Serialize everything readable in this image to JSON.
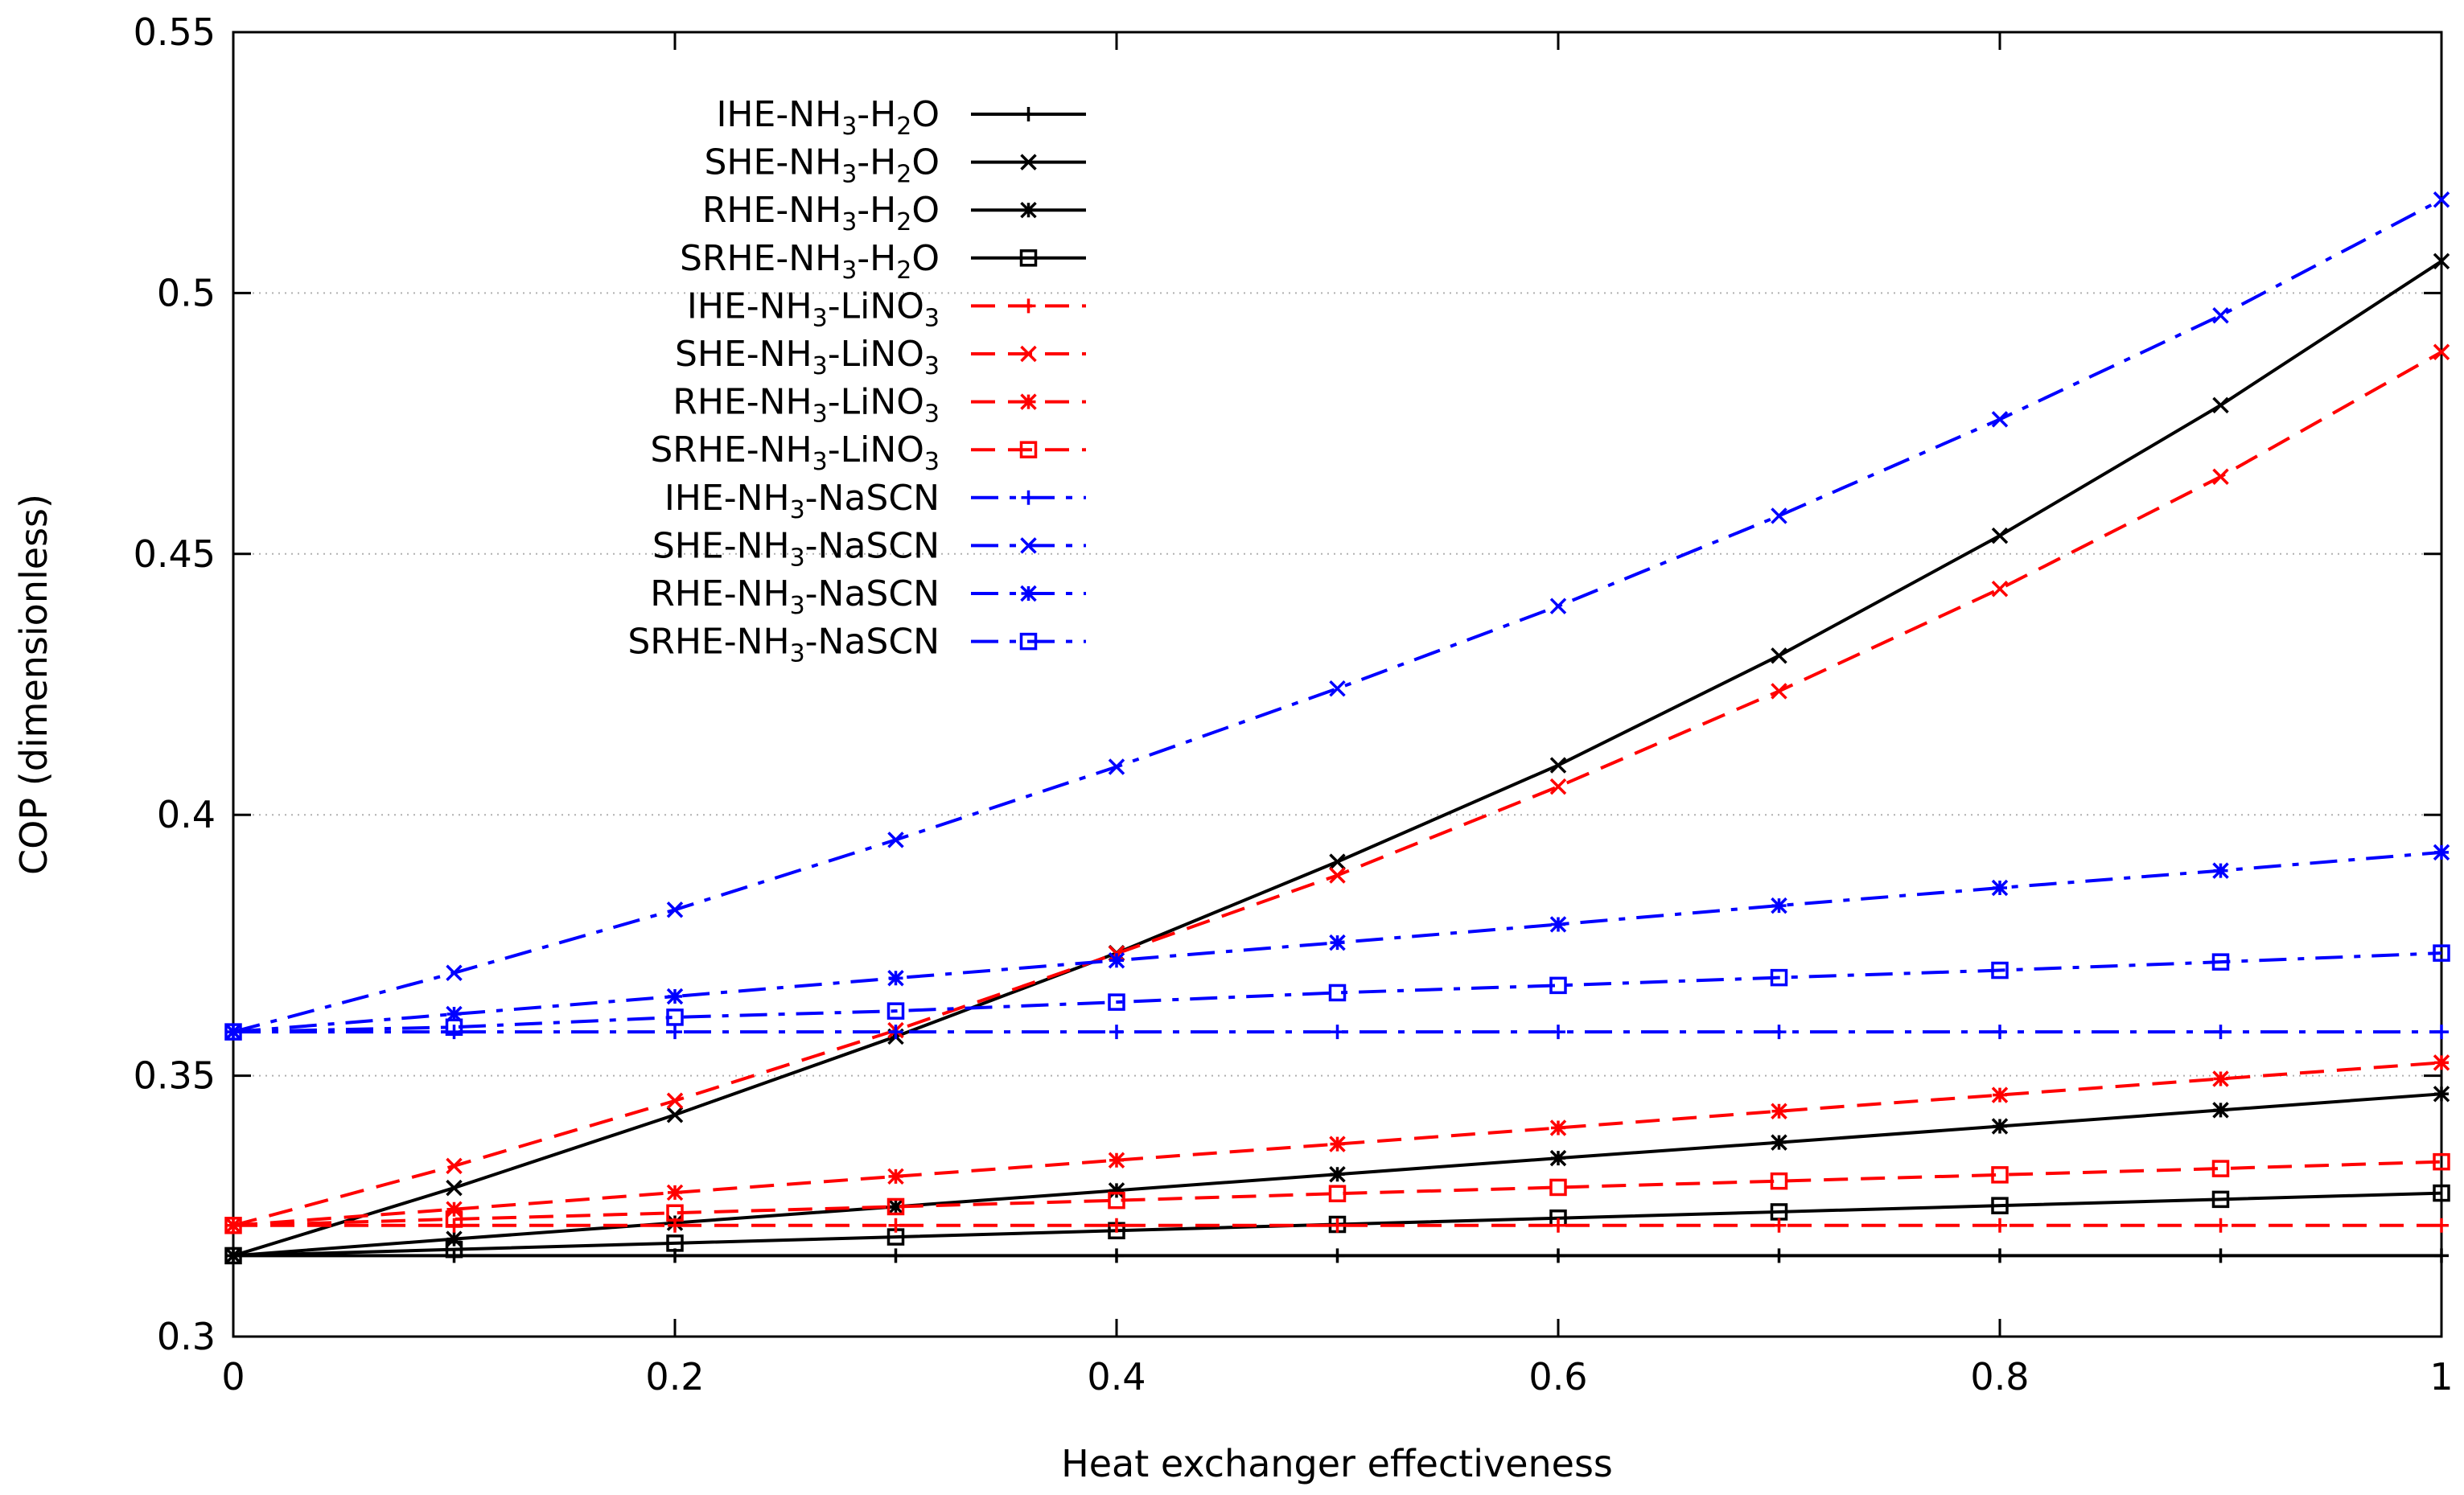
{
  "chart_data": {
    "type": "line",
    "title": "",
    "xlabel": "Heat exchanger effectiveness",
    "ylabel": "COP (dimensionless)",
    "xlim": [
      0,
      1
    ],
    "ylim": [
      0.3,
      0.55
    ],
    "xticks": [
      0,
      0.2,
      0.4,
      0.6,
      0.8,
      1
    ],
    "xtick_labels": [
      "0",
      "0.2",
      "0.4",
      "0.6",
      "0.8",
      "1"
    ],
    "yticks": [
      0.3,
      0.35,
      0.4,
      0.45,
      0.5,
      0.55
    ],
    "ytick_labels": [
      "0.3",
      "0.35",
      "0.4",
      "0.45",
      "0.5",
      "0.55"
    ],
    "grid": "horizontal dotted",
    "legend_position": "top-left",
    "x": [
      0,
      0.1,
      0.2,
      0.3,
      0.4,
      0.5,
      0.6,
      0.7,
      0.8,
      0.9,
      1.0
    ],
    "colors": {
      "h2o": "#000000",
      "lino3": "#ff0000",
      "nascn": "#0000ff"
    },
    "series": [
      {
        "name": "IHE-NH3-H2O",
        "label": [
          "IHE-NH",
          "3",
          "-H",
          "2",
          "O"
        ],
        "color": "#000000",
        "dash": "solid",
        "marker": "plus",
        "values": [
          0.3155,
          0.3155,
          0.3155,
          0.3155,
          0.3155,
          0.3155,
          0.3155,
          0.3155,
          0.3155,
          0.3155,
          0.3155
        ]
      },
      {
        "name": "SHE-NH3-H2O",
        "label": [
          "SHE-NH",
          "3",
          "-H",
          "2",
          "O"
        ],
        "color": "#000000",
        "dash": "solid",
        "marker": "cross",
        "values": [
          0.3155,
          0.3285,
          0.3425,
          0.3575,
          0.3735,
          0.391,
          0.4095,
          0.4305,
          0.4535,
          0.4785,
          0.5061
        ]
      },
      {
        "name": "RHE-NH3-H2O",
        "label": [
          "RHE-NH",
          "3",
          "-H",
          "2",
          "O"
        ],
        "color": "#000000",
        "dash": "solid",
        "marker": "star",
        "values": [
          0.3155,
          0.3187,
          0.3218,
          0.3249,
          0.328,
          0.3311,
          0.3342,
          0.3372,
          0.3403,
          0.3434,
          0.3465
        ]
      },
      {
        "name": "SRHE-NH3-H2O",
        "label": [
          "SRHE-NH",
          "3",
          "-H",
          "2",
          "O"
        ],
        "color": "#000000",
        "dash": "solid",
        "marker": "box",
        "values": [
          0.3155,
          0.3167,
          0.3179,
          0.3191,
          0.3203,
          0.3215,
          0.3227,
          0.3239,
          0.3251,
          0.3263,
          0.3275
        ]
      },
      {
        "name": "IHE-NH3-LiNO3",
        "label": [
          "IHE-NH",
          "3",
          "-LiNO",
          "3",
          ""
        ],
        "color": "#ff0000",
        "dash": "dashed",
        "marker": "plus",
        "values": [
          0.3213,
          0.3213,
          0.3213,
          0.3213,
          0.3213,
          0.3213,
          0.3213,
          0.3213,
          0.3213,
          0.3213,
          0.3213
        ]
      },
      {
        "name": "SHE-NH3-LiNO3",
        "label": [
          "SHE-NH",
          "3",
          "-LiNO",
          "3",
          ""
        ],
        "color": "#ff0000",
        "dash": "dashed",
        "marker": "cross",
        "values": [
          0.3213,
          0.3327,
          0.3452,
          0.3587,
          0.3734,
          0.3884,
          0.4054,
          0.4237,
          0.4433,
          0.4648,
          0.4887
        ]
      },
      {
        "name": "RHE-NH3-LiNO3",
        "label": [
          "RHE-NH",
          "3",
          "-LiNO",
          "3",
          ""
        ],
        "color": "#ff0000",
        "dash": "dashed",
        "marker": "star",
        "values": [
          0.3213,
          0.3244,
          0.3276,
          0.3307,
          0.3338,
          0.3369,
          0.34,
          0.3432,
          0.3463,
          0.3494,
          0.3525
        ]
      },
      {
        "name": "SRHE-NH3-LiNO3",
        "label": [
          "SRHE-NH",
          "3",
          "-LiNO",
          "3",
          ""
        ],
        "color": "#ff0000",
        "dash": "dashed",
        "marker": "box",
        "values": [
          0.3213,
          0.3225,
          0.3237,
          0.3249,
          0.3261,
          0.3274,
          0.3286,
          0.3298,
          0.331,
          0.3322,
          0.3335
        ]
      },
      {
        "name": "IHE-NH3-NaSCN",
        "label": [
          "IHE-NH",
          "3",
          "-NaSCN",
          "",
          ""
        ],
        "color": "#0000ff",
        "dash": "dashdot",
        "marker": "plus",
        "values": [
          0.3584,
          0.3584,
          0.3584,
          0.3584,
          0.3584,
          0.3584,
          0.3584,
          0.3584,
          0.3584,
          0.3584,
          0.3584
        ]
      },
      {
        "name": "SHE-NH3-NaSCN",
        "label": [
          "SHE-NH",
          "3",
          "-NaSCN",
          "",
          ""
        ],
        "color": "#0000ff",
        "dash": "dashdot",
        "marker": "cross",
        "values": [
          0.3584,
          0.3697,
          0.3818,
          0.3952,
          0.4092,
          0.4242,
          0.44,
          0.4573,
          0.4758,
          0.4957,
          0.5179
        ]
      },
      {
        "name": "RHE-NH3-NaSCN",
        "label": [
          "RHE-NH",
          "3",
          "-NaSCN",
          "",
          ""
        ],
        "color": "#0000ff",
        "dash": "dashdot",
        "marker": "star",
        "values": [
          0.3584,
          0.3618,
          0.3652,
          0.3687,
          0.3721,
          0.3755,
          0.379,
          0.3826,
          0.386,
          0.3893,
          0.3928
        ]
      },
      {
        "name": "SRHE-NH3-NaSCN",
        "label": [
          "SRHE-NH",
          "3",
          "-NaSCN",
          "",
          ""
        ],
        "color": "#0000ff",
        "dash": "dashdot",
        "marker": "box",
        "values": [
          0.3584,
          0.3593,
          0.3612,
          0.3624,
          0.3641,
          0.3659,
          0.3673,
          0.3688,
          0.3702,
          0.3718,
          0.3735
        ]
      }
    ]
  }
}
